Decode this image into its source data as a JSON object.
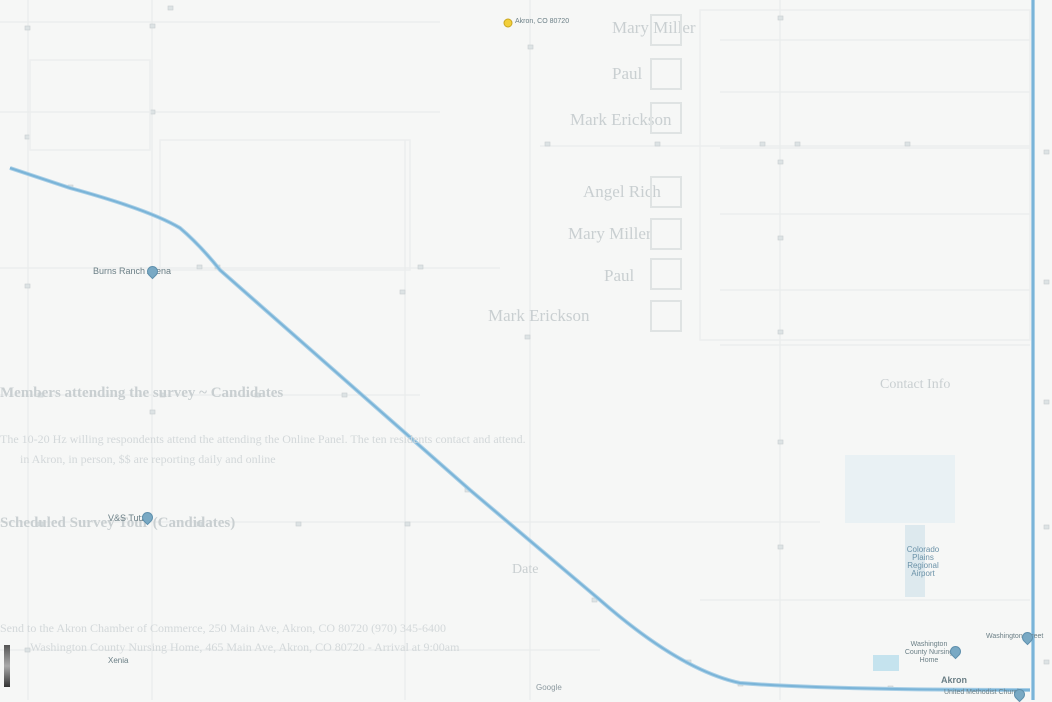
{
  "map": {
    "labels": {
      "burns_ranch_arena": "Burns Ranch Arena",
      "v_and_s_tutz": "V&S Tutz",
      "xenia": "Xenia",
      "akron": "Akron",
      "washington_county_nursing": "Washington County Nursing Home",
      "united_methodist": "United Methodist Church",
      "lower_right_road": "Washington Street",
      "top_place": "Akron, CO 80720"
    },
    "airport": {
      "line1": "Colorado",
      "line2": "Plains",
      "line3": "Regional",
      "line4": "Airport"
    },
    "google_logo": "Google",
    "ghost_text": {
      "row1": "Mary Miller",
      "row2": "Paul",
      "row3": "Mark Erickson",
      "row4": "Angel Rich",
      "row5": "Mary Miller",
      "row6": "Paul",
      "row7": "Mark Erickson",
      "heading1": "Members attending the survey ~ Candidates",
      "heading1b": "Contact Info",
      "para1": "The 10-20 Hz willing respondents attend the attending the Online Panel. The ten residents contact and attend.",
      "para2": "in Akron, in person, $$ are reporting daily and online",
      "heading2": "Scheduled Survey Tour (Candidates)",
      "heading2b": "Date",
      "para3": "Send to the Akron Chamber of Commerce, 250 Main Ave, Akron, CO 80720 (970) 345-6400",
      "para4": "Washington County Nursing Home, 465 Main Ave, Akron, CO 80720 - Arrival at 9:00am"
    },
    "colors": {
      "road": "#7ab4d8",
      "road_edge": "#a9cfe6",
      "background": "#f6f7f6",
      "airport": "#c5e3ee"
    },
    "icons": [
      "location-pin-icon",
      "google-logo-icon"
    ]
  }
}
